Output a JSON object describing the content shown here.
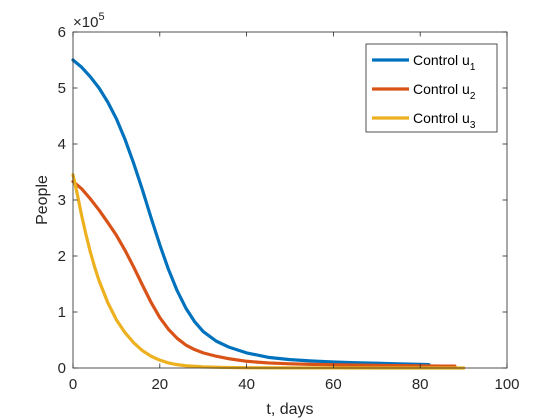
{
  "chart_data": {
    "type": "line",
    "title": "",
    "xlabel": "t, days",
    "ylabel": "People",
    "xlim": [
      0,
      100
    ],
    "ylim": [
      0,
      600000
    ],
    "xticks": [
      0,
      20,
      40,
      60,
      80,
      100
    ],
    "yticks": [
      0,
      100000,
      200000,
      300000,
      400000,
      500000,
      600000
    ],
    "ytick_labels": [
      "0",
      "1",
      "2",
      "3",
      "4",
      "5",
      "6"
    ],
    "y_multiplier": {
      "base": "10",
      "exponent": "5"
    },
    "grid": false,
    "legend_position": "top-right",
    "series": [
      {
        "name": "Control u",
        "name_sub": "1",
        "color": "#0072BD",
        "x": [
          0,
          2,
          4,
          6,
          8,
          10,
          12,
          14,
          16,
          18,
          20,
          22,
          24,
          26,
          28,
          30,
          33,
          36,
          40,
          45,
          50,
          55,
          60,
          65,
          70,
          75,
          80,
          82
        ],
        "y": [
          550000,
          537000,
          520000,
          500000,
          475000,
          445000,
          408000,
          365000,
          318000,
          268000,
          220000,
          176000,
          138000,
          107000,
          83000,
          65000,
          48000,
          37000,
          27000,
          19000,
          15000,
          12500,
          10800,
          9500,
          8500,
          7500,
          6500,
          6000
        ]
      },
      {
        "name": "Control u",
        "name_sub": "2",
        "color": "#D95319",
        "x": [
          0,
          2,
          4,
          6,
          8,
          10,
          12,
          14,
          16,
          18,
          20,
          22,
          24,
          26,
          28,
          30,
          33,
          36,
          40,
          45,
          50,
          55,
          60,
          65,
          70,
          75,
          80,
          85,
          88
        ],
        "y": [
          333000,
          320000,
          302000,
          282000,
          260000,
          237000,
          210000,
          180000,
          148000,
          117000,
          90000,
          69000,
          53000,
          41000,
          33000,
          27000,
          21000,
          16500,
          12000,
          9000,
          7500,
          6500,
          5800,
          5200,
          4700,
          4300,
          3900,
          3500,
          3300
        ]
      },
      {
        "name": "Control u",
        "name_sub": "3",
        "color": "#EDB120",
        "x": [
          0,
          1,
          2,
          3,
          4,
          5,
          6,
          8,
          10,
          12,
          14,
          16,
          18,
          20,
          22,
          24,
          26,
          30,
          35,
          40,
          50,
          60,
          70,
          80,
          90
        ],
        "y": [
          345000,
          310000,
          272000,
          238000,
          207000,
          180000,
          156000,
          117000,
          86000,
          63000,
          45000,
          31000,
          21000,
          14000,
          9000,
          6000,
          4000,
          2000,
          1000,
          500,
          200,
          100,
          50,
          20,
          0
        ]
      }
    ]
  }
}
